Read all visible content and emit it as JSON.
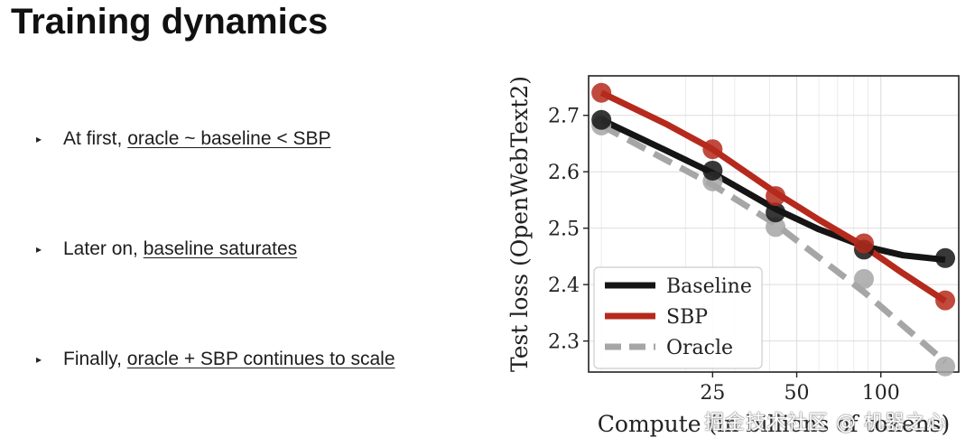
{
  "slide": {
    "title": "Training dynamics"
  },
  "bullets": [
    {
      "marker": "▸",
      "lead": "At first, ",
      "link": "oracle ~ baseline < SBP"
    },
    {
      "marker": "▸",
      "lead": "Later on, ",
      "link": "baseline saturates"
    },
    {
      "marker": "▸",
      "lead": "Finally, ",
      "link": "oracle + SBP continues to scale"
    }
  ],
  "watermark": "掘金技术社区 @ 机器之心",
  "chart_data": {
    "type": "line",
    "xlabel": "Compute (in billions of tokens)",
    "ylabel": "Test loss (OpenWebText2)",
    "x_scale": "log",
    "xlim": [
      9,
      190
    ],
    "ylim": [
      2.245,
      2.77
    ],
    "x_ticks": [
      25,
      50,
      100
    ],
    "y_ticks": [
      2.3,
      2.4,
      2.5,
      2.6,
      2.7
    ],
    "grid": true,
    "legend_position": "lower-left",
    "series": [
      {
        "name": "Baseline",
        "color": "#151515",
        "style": "solid",
        "points": [
          [
            10,
            2.692
          ],
          [
            25,
            2.602
          ],
          [
            42,
            2.528
          ],
          [
            87,
            2.462
          ],
          [
            170,
            2.447
          ]
        ],
        "fit": [
          [
            10,
            2.692
          ],
          [
            17,
            2.638
          ],
          [
            25,
            2.598
          ],
          [
            42,
            2.534
          ],
          [
            60,
            2.498
          ],
          [
            87,
            2.468
          ],
          [
            120,
            2.452
          ],
          [
            170,
            2.444
          ]
        ]
      },
      {
        "name": "SBP",
        "color": "#b52a1c",
        "style": "solid",
        "points": [
          [
            10,
            2.74
          ],
          [
            25,
            2.64
          ],
          [
            42,
            2.557
          ],
          [
            87,
            2.473
          ],
          [
            170,
            2.372
          ]
        ],
        "fit": [
          [
            10,
            2.74
          ],
          [
            17,
            2.685
          ],
          [
            25,
            2.64
          ],
          [
            42,
            2.563
          ],
          [
            60,
            2.515
          ],
          [
            87,
            2.468
          ],
          [
            120,
            2.42
          ],
          [
            170,
            2.371
          ]
        ]
      },
      {
        "name": "Oracle",
        "color": "#a6a6a6",
        "style": "dashed",
        "points": [
          [
            10,
            2.682
          ],
          [
            25,
            2.583
          ],
          [
            42,
            2.502
          ],
          [
            87,
            2.41
          ],
          [
            170,
            2.255
          ]
        ],
        "fit": [
          [
            10,
            2.682
          ],
          [
            25,
            2.577
          ],
          [
            42,
            2.507
          ],
          [
            87,
            2.387
          ],
          [
            170,
            2.263
          ]
        ]
      }
    ]
  }
}
